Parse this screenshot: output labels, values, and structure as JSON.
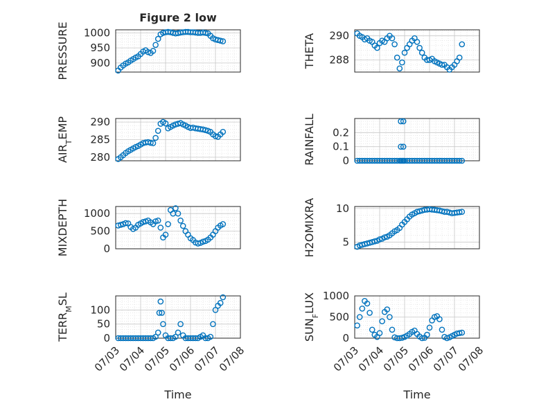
{
  "figure": {
    "title": "Figure 2 low",
    "x_axis_label": "Time"
  },
  "colors": {
    "marker": "#0072BD",
    "axis": "#262626",
    "grid": "#dcdcdc",
    "background": "#ffffff"
  },
  "chart_data": [
    {
      "type": "scatter",
      "ylabel": "PRESSURE",
      "ylim": [
        870,
        1010
      ],
      "yticks": [
        "900",
        "950",
        "1000"
      ],
      "ytick_values": [
        900,
        950,
        1000
      ],
      "x": [
        3.1,
        3.2,
        3.3,
        3.4,
        3.5,
        3.6,
        3.7,
        3.8,
        3.9,
        4.0,
        4.1,
        4.2,
        4.3,
        4.4,
        4.5,
        4.6,
        4.7,
        4.8,
        4.9,
        5.0,
        5.1,
        5.2,
        5.3,
        5.4,
        5.5,
        5.6,
        5.7,
        5.8,
        5.9,
        6.0,
        6.1,
        6.2,
        6.3,
        6.4,
        6.5,
        6.6,
        6.7,
        6.8,
        6.9,
        7.0,
        7.1,
        7.2,
        7.3
      ],
      "y": [
        875,
        885,
        892,
        898,
        902,
        908,
        913,
        918,
        922,
        930,
        938,
        942,
        936,
        933,
        940,
        960,
        980,
        995,
        1000,
        1002,
        1003,
        1002,
        1000,
        998,
        999,
        1001,
        1002,
        1003,
        1003,
        1002,
        1002,
        1001,
        1000,
        1000,
        1001,
        1000,
        998,
        990,
        982,
        978,
        976,
        974,
        972
      ]
    },
    {
      "type": "scatter",
      "ylabel": "THETA",
      "ylim": [
        287,
        290.5
      ],
      "yticks": [
        "288",
        "290"
      ],
      "ytick_values": [
        288,
        290
      ],
      "x": [
        3.1,
        3.2,
        3.3,
        3.4,
        3.5,
        3.6,
        3.7,
        3.8,
        3.9,
        4.0,
        4.1,
        4.2,
        4.3,
        4.4,
        4.5,
        4.6,
        4.7,
        4.8,
        4.9,
        5.0,
        5.1,
        5.2,
        5.3,
        5.4,
        5.5,
        5.6,
        5.7,
        5.8,
        5.9,
        6.0,
        6.1,
        6.2,
        6.3,
        6.4,
        6.5,
        6.6,
        6.7,
        6.8,
        6.9,
        7.0,
        7.1,
        7.2,
        7.3
      ],
      "y": [
        290.2,
        290.0,
        289.9,
        289.7,
        289.8,
        289.6,
        289.5,
        289.2,
        289.0,
        289.4,
        289.6,
        289.5,
        289.8,
        290.0,
        289.8,
        289.3,
        288.2,
        287.3,
        287.8,
        288.6,
        289.0,
        289.3,
        289.6,
        289.8,
        289.5,
        289.0,
        288.6,
        288.2,
        288.0,
        288.0,
        288.1,
        287.9,
        287.8,
        287.7,
        287.6,
        287.6,
        287.4,
        287.2,
        287.4,
        287.6,
        287.9,
        288.2,
        289.3
      ]
    },
    {
      "type": "scatter",
      "ylabel": "AIR_TEMP",
      "ylim": [
        279,
        291
      ],
      "yticks": [
        "280",
        "285",
        "290"
      ],
      "ytick_values": [
        280,
        285,
        290
      ],
      "x": [
        3.1,
        3.2,
        3.3,
        3.4,
        3.5,
        3.6,
        3.7,
        3.8,
        3.9,
        4.0,
        4.1,
        4.2,
        4.3,
        4.4,
        4.5,
        4.6,
        4.7,
        4.8,
        4.9,
        5.0,
        5.1,
        5.2,
        5.3,
        5.4,
        5.5,
        5.6,
        5.7,
        5.8,
        5.9,
        6.0,
        6.1,
        6.2,
        6.3,
        6.4,
        6.5,
        6.6,
        6.7,
        6.8,
        6.9,
        7.0,
        7.1,
        7.2,
        7.3
      ],
      "y": [
        279.5,
        280.0,
        280.6,
        281.2,
        281.7,
        282.1,
        282.5,
        282.9,
        283.2,
        283.6,
        284.0,
        284.2,
        284.3,
        284.1,
        284.0,
        285.5,
        287.5,
        289.5,
        290.0,
        289.6,
        288.2,
        288.6,
        289.0,
        289.3,
        289.5,
        289.7,
        289.3,
        289.0,
        288.6,
        288.3,
        288.4,
        288.2,
        288.1,
        288.0,
        287.9,
        287.7,
        287.5,
        287.2,
        286.5,
        286.0,
        285.8,
        286.5,
        287.2
      ]
    },
    {
      "type": "scatter",
      "ylabel": "RAINFALL",
      "ylim": [
        0,
        0.3
      ],
      "yticks": [
        "0",
        "0.1",
        "0.2"
      ],
      "ytick_values": [
        0,
        0.1,
        0.2
      ],
      "x": [
        3.1,
        3.2,
        3.3,
        3.4,
        3.5,
        3.6,
        3.7,
        3.8,
        3.9,
        4.0,
        4.1,
        4.2,
        4.3,
        4.4,
        4.5,
        4.6,
        4.7,
        4.8,
        4.85,
        4.9,
        4.95,
        5.0,
        5.1,
        5.2,
        5.3,
        5.4,
        5.5,
        5.6,
        5.7,
        5.8,
        5.9,
        6.0,
        6.1,
        6.2,
        6.3,
        6.4,
        6.5,
        6.6,
        6.7,
        6.8,
        6.9,
        7.0,
        7.1,
        7.2,
        7.3,
        4.85,
        4.95,
        4.85,
        4.95
      ],
      "y": [
        0,
        0,
        0,
        0,
        0,
        0,
        0,
        0,
        0,
        0,
        0,
        0,
        0,
        0,
        0,
        0,
        0,
        0,
        0,
        0,
        0,
        0,
        0,
        0,
        0,
        0,
        0,
        0,
        0,
        0,
        0,
        0,
        0,
        0,
        0,
        0,
        0,
        0,
        0,
        0,
        0,
        0,
        0,
        0,
        0,
        0.28,
        0.28,
        0.1,
        0.1
      ]
    },
    {
      "type": "scatter",
      "ylabel": "MIXDEPTH",
      "ylim": [
        0,
        1200
      ],
      "yticks": [
        "0",
        "500",
        "1000"
      ],
      "ytick_values": [
        0,
        500,
        1000
      ],
      "x": [
        3.1,
        3.2,
        3.3,
        3.4,
        3.5,
        3.6,
        3.7,
        3.8,
        3.9,
        4.0,
        4.1,
        4.2,
        4.3,
        4.4,
        4.5,
        4.6,
        4.7,
        4.8,
        4.9,
        5.0,
        5.1,
        5.2,
        5.3,
        5.4,
        5.5,
        5.6,
        5.7,
        5.8,
        5.9,
        6.0,
        6.1,
        6.2,
        6.3,
        6.4,
        6.5,
        6.6,
        6.7,
        6.8,
        6.9,
        7.0,
        7.1,
        7.2,
        7.3
      ],
      "y": [
        660,
        680,
        700,
        730,
        720,
        620,
        560,
        600,
        680,
        720,
        760,
        780,
        800,
        750,
        700,
        780,
        800,
        600,
        320,
        400,
        700,
        1100,
        1000,
        1150,
        1000,
        800,
        650,
        500,
        400,
        300,
        250,
        180,
        150,
        170,
        200,
        220,
        260,
        320,
        400,
        500,
        600,
        660,
        700
      ]
    },
    {
      "type": "scatter",
      "ylabel": "H2OMIXRA",
      "ylim": [
        4,
        10.3
      ],
      "yticks": [
        "5",
        "10"
      ],
      "ytick_values": [
        5,
        10
      ],
      "x": [
        3.1,
        3.2,
        3.3,
        3.4,
        3.5,
        3.6,
        3.7,
        3.8,
        3.9,
        4.0,
        4.1,
        4.2,
        4.3,
        4.4,
        4.5,
        4.6,
        4.7,
        4.8,
        4.9,
        5.0,
        5.1,
        5.2,
        5.3,
        5.4,
        5.5,
        5.6,
        5.7,
        5.8,
        5.9,
        6.0,
        6.1,
        6.2,
        6.3,
        6.4,
        6.5,
        6.6,
        6.7,
        6.8,
        6.9,
        7.0,
        7.1,
        7.2,
        7.3
      ],
      "y": [
        4.3,
        4.5,
        4.6,
        4.7,
        4.8,
        4.9,
        5.0,
        5.1,
        5.2,
        5.4,
        5.5,
        5.7,
        5.8,
        6.0,
        6.3,
        6.6,
        6.8,
        7.1,
        7.6,
        8.0,
        8.4,
        8.8,
        9.1,
        9.3,
        9.5,
        9.6,
        9.7,
        9.8,
        9.85,
        9.9,
        9.85,
        9.8,
        9.75,
        9.7,
        9.6,
        9.5,
        9.5,
        9.4,
        9.3,
        9.35,
        9.4,
        9.45,
        9.5
      ]
    },
    {
      "type": "scatter",
      "ylabel": "TERR_MSL",
      "ylim": [
        0,
        150
      ],
      "yticks": [
        "0",
        "50",
        "100"
      ],
      "ytick_values": [
        0,
        50,
        100
      ],
      "x": [
        3.1,
        3.2,
        3.3,
        3.4,
        3.5,
        3.6,
        3.7,
        3.8,
        3.9,
        4.0,
        4.1,
        4.2,
        4.3,
        4.4,
        4.5,
        4.6,
        4.7,
        4.75,
        4.8,
        4.85,
        4.9,
        5.0,
        5.1,
        5.2,
        5.3,
        5.4,
        5.5,
        5.6,
        5.7,
        5.8,
        5.9,
        6.0,
        6.1,
        6.2,
        6.3,
        6.4,
        6.5,
        6.6,
        6.7,
        6.8,
        6.9,
        7.0,
        7.1,
        7.2,
        7.3
      ],
      "y": [
        0,
        0,
        0,
        0,
        0,
        0,
        0,
        0,
        0,
        0,
        0,
        0,
        0,
        0,
        0,
        5,
        20,
        90,
        130,
        90,
        50,
        10,
        0,
        0,
        0,
        5,
        20,
        50,
        10,
        0,
        0,
        0,
        0,
        0,
        0,
        5,
        10,
        0,
        0,
        5,
        50,
        100,
        115,
        125,
        145
      ]
    },
    {
      "type": "scatter",
      "ylabel": "SUN_FLUX",
      "ylim": [
        0,
        1000
      ],
      "yticks": [
        "0",
        "500",
        "1000"
      ],
      "ytick_values": [
        0,
        500,
        1000
      ],
      "x": [
        3.1,
        3.2,
        3.3,
        3.4,
        3.5,
        3.6,
        3.7,
        3.8,
        3.9,
        4.0,
        4.1,
        4.2,
        4.3,
        4.4,
        4.5,
        4.6,
        4.7,
        4.8,
        4.9,
        5.0,
        5.1,
        5.2,
        5.3,
        5.4,
        5.5,
        5.6,
        5.7,
        5.8,
        5.9,
        6.0,
        6.1,
        6.2,
        6.3,
        6.4,
        6.5,
        6.6,
        6.7,
        6.8,
        6.9,
        7.0,
        7.1,
        7.2,
        7.3
      ],
      "y": [
        300,
        500,
        700,
        880,
        820,
        600,
        200,
        80,
        30,
        120,
        400,
        620,
        680,
        500,
        200,
        20,
        0,
        0,
        10,
        30,
        60,
        100,
        150,
        180,
        100,
        40,
        0,
        10,
        80,
        250,
        420,
        500,
        520,
        450,
        200,
        30,
        0,
        20,
        50,
        80,
        110,
        120,
        130
      ]
    }
  ],
  "x_axis": {
    "range": [
      3,
      8
    ],
    "tick_values": [
      3,
      4,
      5,
      6,
      7,
      8
    ],
    "tick_labels": [
      "07/03",
      "07/04",
      "07/05",
      "07/06",
      "07/07",
      "07/08"
    ]
  }
}
